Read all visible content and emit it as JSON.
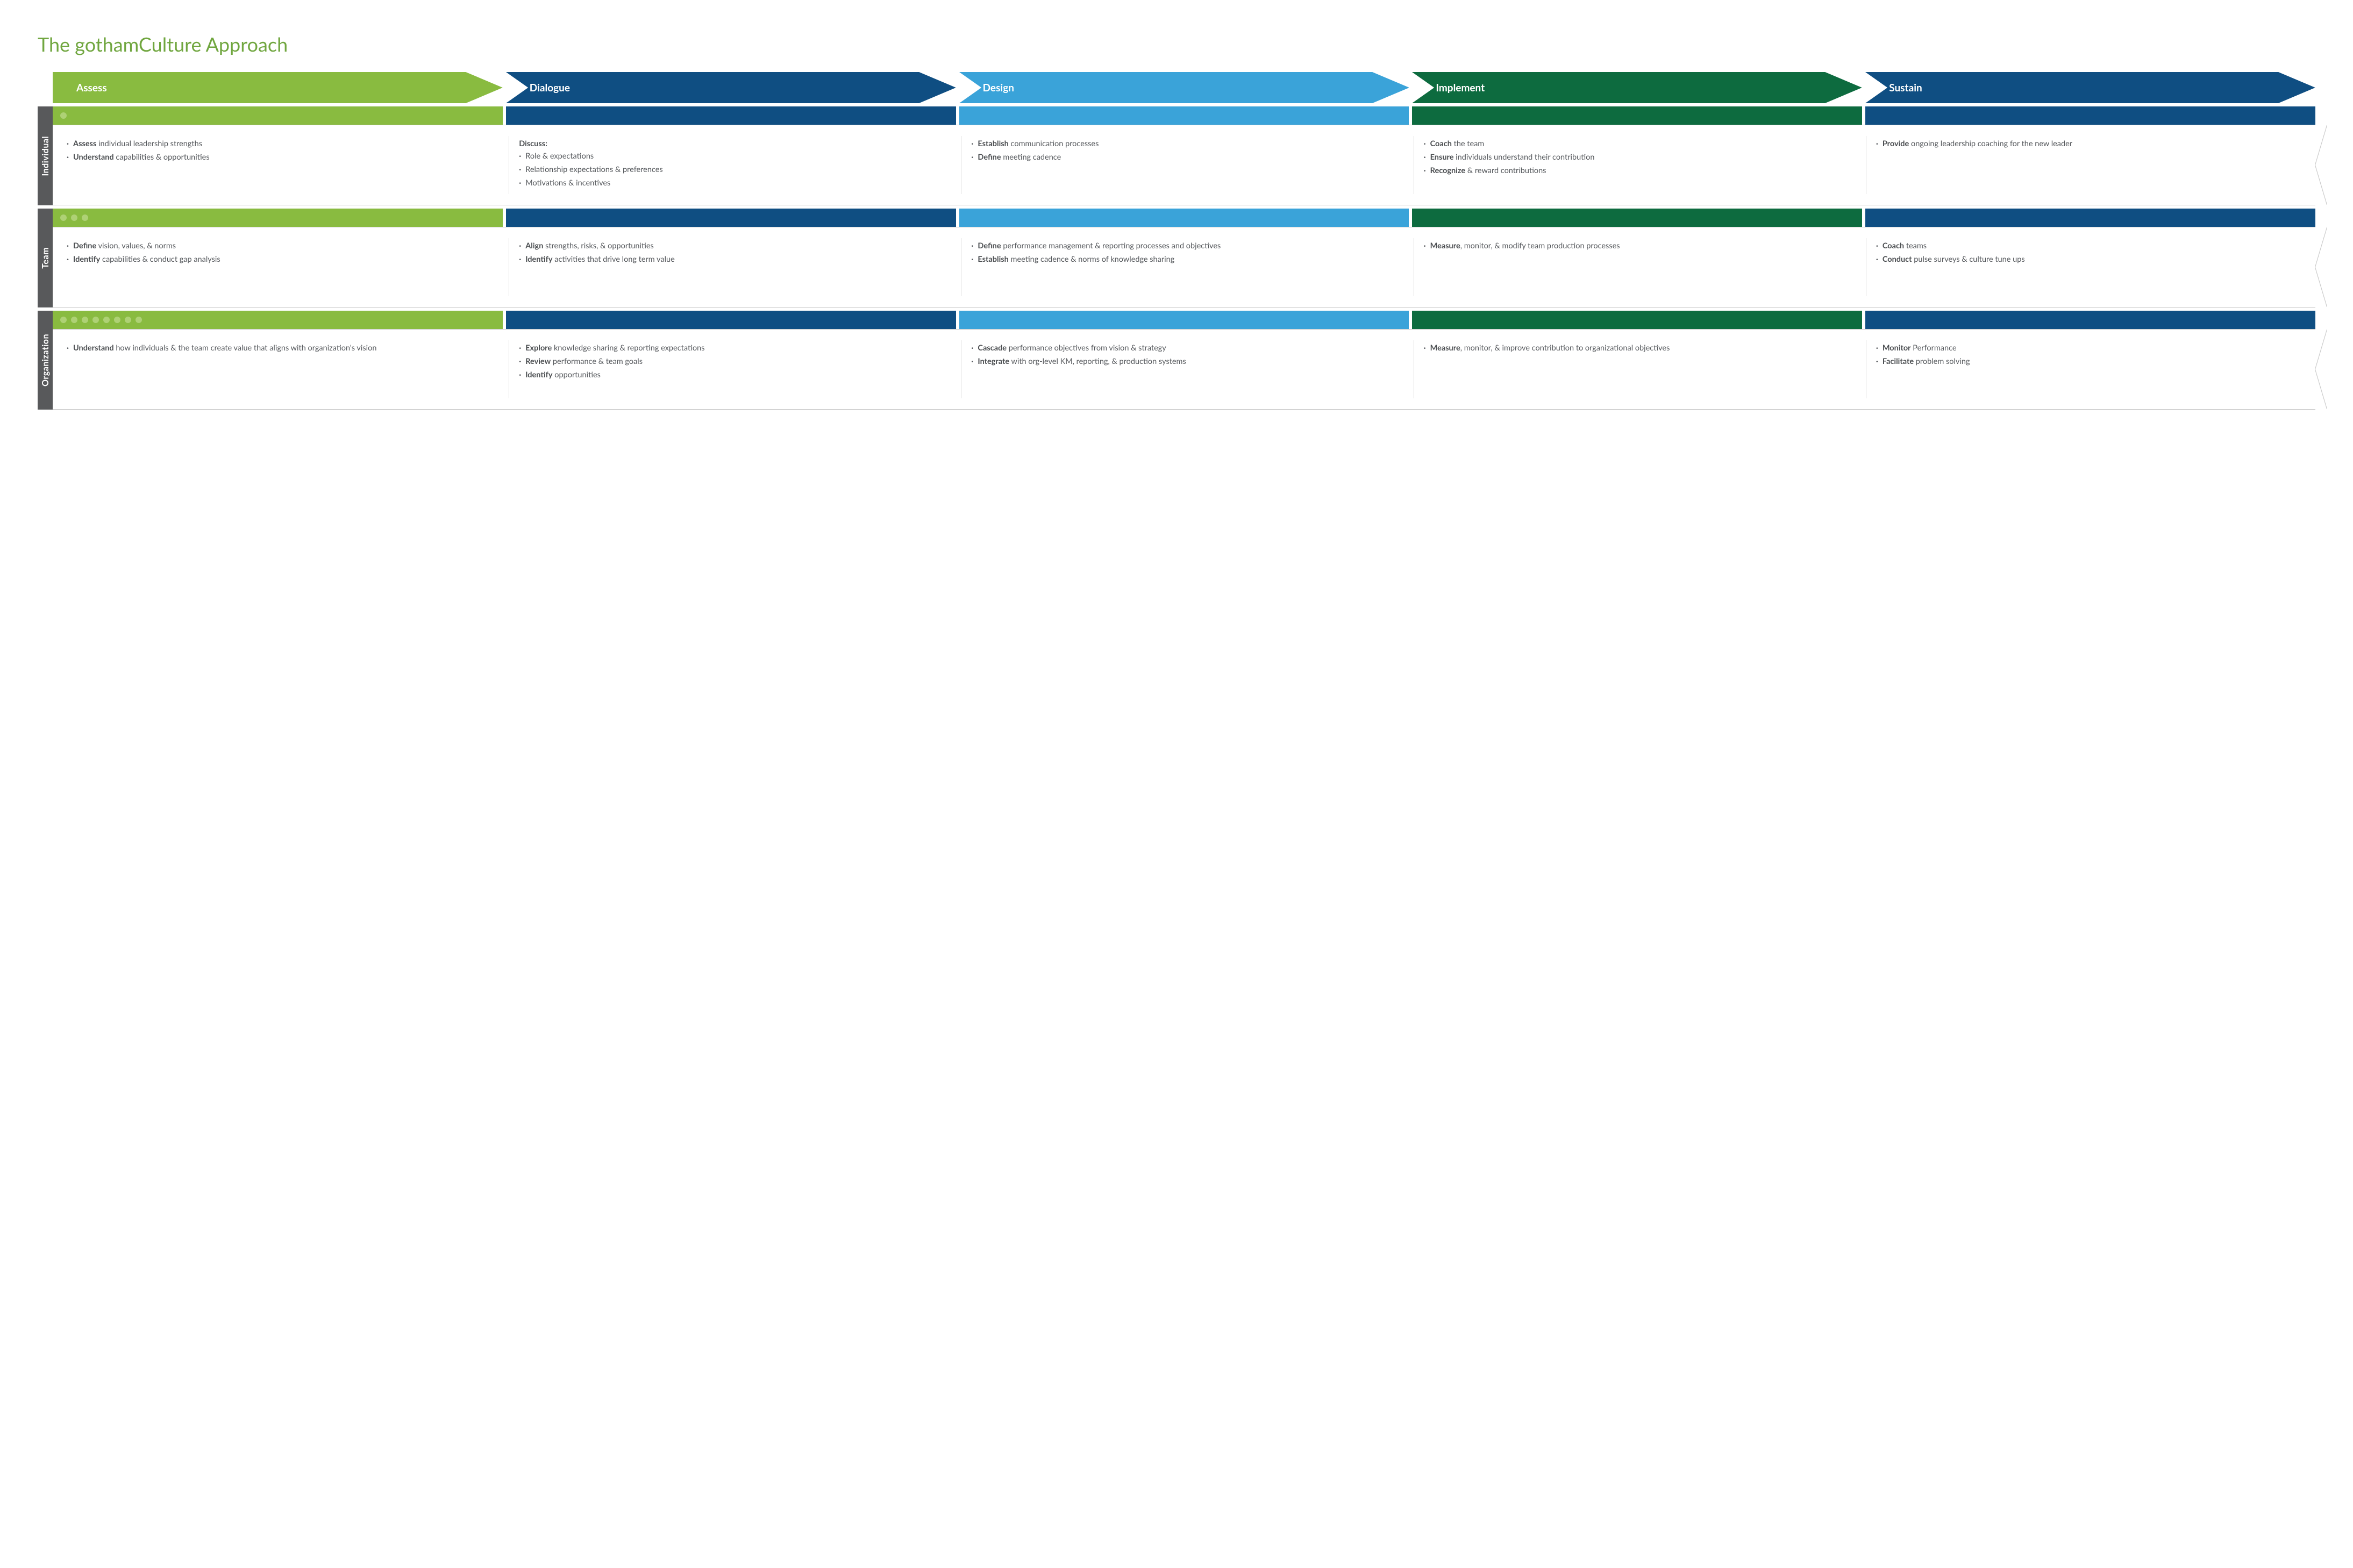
{
  "title": "The gothamCulture Approach",
  "title_color": "#70a63f",
  "stages": [
    {
      "label": "Assess",
      "color": "#89bb40"
    },
    {
      "label": "Dialogue",
      "color": "#0f4e82"
    },
    {
      "label": "Design",
      "color": "#3aa3d9"
    },
    {
      "label": "Implement",
      "color": "#0d6b3f"
    },
    {
      "label": "Sustain",
      "color": "#0f4e82"
    }
  ],
  "band_colors": [
    "#89bb40",
    "#0f4e82",
    "#3aa3d9",
    "#0d6b3f",
    "#0f4e82"
  ],
  "side_label_bg": "#58595b",
  "dot_color": "#c6e09a",
  "rows": [
    {
      "label": "Individual",
      "dot_count": 1,
      "cells": [
        {
          "items": [
            {
              "bold": "Assess",
              "text": " individual leadership strengths"
            },
            {
              "bold": "Understand",
              "text": " capabilities & opportunities"
            }
          ]
        },
        {
          "lead": "Discuss:",
          "items": [
            {
              "text": "Role & expectations"
            },
            {
              "text": "Relationship expectations & preferences"
            },
            {
              "text": "Motivations & incentives"
            }
          ]
        },
        {
          "items": [
            {
              "bold": "Establish",
              "text": " communication processes"
            },
            {
              "bold": "Define",
              "text": " meeting cadence"
            }
          ]
        },
        {
          "items": [
            {
              "bold": "Coach",
              "text": " the team"
            },
            {
              "bold": "Ensure",
              "text": " individuals understand their contribution"
            },
            {
              "bold": "Recognize",
              "text": " & reward contributions"
            }
          ]
        },
        {
          "items": [
            {
              "bold": "Provide",
              "text": " ongoing leadership coaching for the new leader"
            }
          ]
        }
      ]
    },
    {
      "label": "Team",
      "dot_count": 3,
      "cells": [
        {
          "items": [
            {
              "bold": "Define",
              "text": " vision, values, & norms"
            },
            {
              "bold": "Identify",
              "text": " capabilities & conduct gap analysis"
            }
          ]
        },
        {
          "items": [
            {
              "bold": "Align",
              "text": " strengths, risks, & opportunities"
            },
            {
              "bold": "Identify",
              "text": " activities that drive long term value"
            }
          ]
        },
        {
          "items": [
            {
              "bold": "Define",
              "text": " performance management & reporting processes and objectives"
            },
            {
              "bold": "Establish",
              "text": " meeting cadence & norms of knowledge sharing"
            }
          ]
        },
        {
          "items": [
            {
              "bold": "Measure",
              "text": ", monitor, & modify team production processes"
            }
          ]
        },
        {
          "items": [
            {
              "bold": "Coach",
              "text": " teams"
            },
            {
              "bold": "Conduct",
              "text": " pulse surveys & culture tune ups"
            }
          ]
        }
      ]
    },
    {
      "label": "Organization",
      "dot_count": 8,
      "cells": [
        {
          "items": [
            {
              "bold": "Understand",
              "text": " how individuals & the team create value that aligns with organization's vision"
            }
          ]
        },
        {
          "items": [
            {
              "bold": "Explore",
              "text": " knowledge sharing & reporting expectations"
            },
            {
              "bold": "Review",
              "text": " performance & team goals"
            },
            {
              "bold": "Identify",
              "text": " opportunities"
            }
          ]
        },
        {
          "items": [
            {
              "bold": "Cascade",
              "text": " performance objectives from vision & strategy"
            },
            {
              "bold": "Integrate",
              "text": " with org-level KM, reporting, & production systems"
            }
          ]
        },
        {
          "items": [
            {
              "bold": "Measure",
              "text": ", monitor, & improve contribution to organizational objectives"
            }
          ]
        },
        {
          "items": [
            {
              "bold": "Monitor",
              "text": " Performance"
            },
            {
              "bold": "Facilitate",
              "text": " problem solving"
            }
          ]
        }
      ]
    }
  ]
}
